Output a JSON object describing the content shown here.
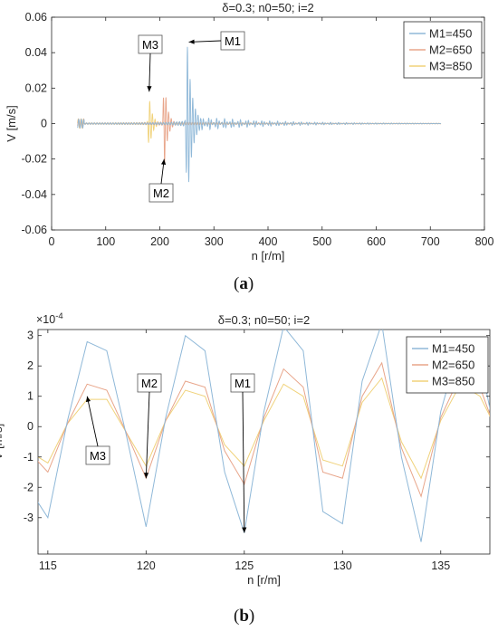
{
  "panels": [
    {
      "label_text": "(a)",
      "label_bold": "a"
    },
    {
      "label_text": "(b)",
      "label_bold": "b"
    }
  ],
  "chart_data": [
    {
      "type": "line",
      "title": "δ=0.3; n0=50; i=2",
      "xlabel": "n [r/m]",
      "ylabel": "V [m/s]",
      "xlim": [
        0,
        800
      ],
      "ylim": [
        -0.06,
        0.06
      ],
      "x_ticks": [
        "0",
        "100",
        "200",
        "300",
        "400",
        "500",
        "600",
        "700",
        "800"
      ],
      "y_ticks": [
        "0.06",
        "0.04",
        "0.02",
        "0",
        "-0.02",
        "-0.04",
        "-0.06"
      ],
      "grid": false,
      "legend_position": "top-right",
      "series": [
        {
          "name": "M1=450",
          "color": "#8fb8d8",
          "resonance_x": 250,
          "peak_max": 0.049,
          "peak_min": -0.044
        },
        {
          "name": "M2=650",
          "color": "#e8a58a",
          "resonance_x": 208,
          "peak_max": 0.026,
          "peak_min": -0.016
        },
        {
          "name": "M3=850",
          "color": "#f0d27a",
          "resonance_x": 180,
          "peak_max": 0.016,
          "peak_min": -0.015
        }
      ],
      "annotations": [
        {
          "text": "M1",
          "x": 252,
          "y": 0.046
        },
        {
          "text": "M2",
          "x": 208,
          "y": -0.019
        },
        {
          "text": "M3",
          "x": 182,
          "y": 0.017
        }
      ]
    },
    {
      "type": "line",
      "title": "δ=0.3; n0=50; i=2",
      "xlabel": "n [r/m]",
      "ylabel": "V [m/s]",
      "exponent_label": "×10",
      "exponent_power": "-4",
      "xlim": [
        114.5,
        137.5
      ],
      "ylim": [
        -0.00042,
        0.00032
      ],
      "x_ticks": [
        "115",
        "120",
        "125",
        "130",
        "135"
      ],
      "y_ticks": [
        "3",
        "2",
        "1",
        "0",
        "-1",
        "-2",
        "-3"
      ],
      "grid": false,
      "legend_position": "top-right",
      "x": [
        114,
        115,
        116,
        117,
        118,
        119,
        120,
        121,
        122,
        123,
        124,
        125,
        126,
        127,
        128,
        129,
        130,
        131,
        132,
        133,
        134,
        135,
        136,
        137,
        138
      ],
      "series": [
        {
          "name": "M1=450",
          "color": "#8fb8d8",
          "values": [
            -0.0002,
            -0.0003,
            2e-05,
            0.00028,
            0.00025,
            -3e-05,
            -0.00033,
            3e-05,
            0.0003,
            0.00025,
            -0.00015,
            -0.00035,
            5e-05,
            0.00033,
            0.00025,
            -0.00028,
            -0.00032,
            0.00015,
            0.00034,
            -0.0001,
            -0.00038,
            5e-05,
            0.00028,
            0.00022,
            -0.0001
          ]
        },
        {
          "name": "M2=650",
          "color": "#e8a58a",
          "values": [
            -8e-05,
            -0.00015,
            1e-05,
            0.00014,
            0.00012,
            -2e-05,
            -0.00017,
            2e-05,
            0.00015,
            0.00013,
            -8e-05,
            -0.00019,
            3e-05,
            0.00019,
            0.00013,
            -0.00015,
            -0.00017,
            0.0001,
            0.00021,
            -7e-05,
            -0.00023,
            3e-05,
            0.00017,
            0.00013,
            -5e-05
          ]
        },
        {
          "name": "M3=850",
          "color": "#f0d27a",
          "values": [
            -8e-05,
            -0.00012,
            1e-05,
            9e-05,
            9e-05,
            -2e-05,
            -0.00013,
            2e-05,
            0.00012,
            0.0001,
            -6e-05,
            -0.00013,
            2e-05,
            0.00014,
            0.0001,
            -0.00011,
            -0.00013,
            8e-05,
            0.00016,
            -5e-05,
            -0.00017,
            2e-05,
            0.00014,
            0.0001,
            -3e-05
          ]
        }
      ],
      "annotations": [
        {
          "text": "M1",
          "x": 125,
          "y": -0.00035
        },
        {
          "text": "M2",
          "x": 120,
          "y": -0.00017
        },
        {
          "text": "M3",
          "x": 117,
          "y": 0.0001
        }
      ]
    }
  ]
}
